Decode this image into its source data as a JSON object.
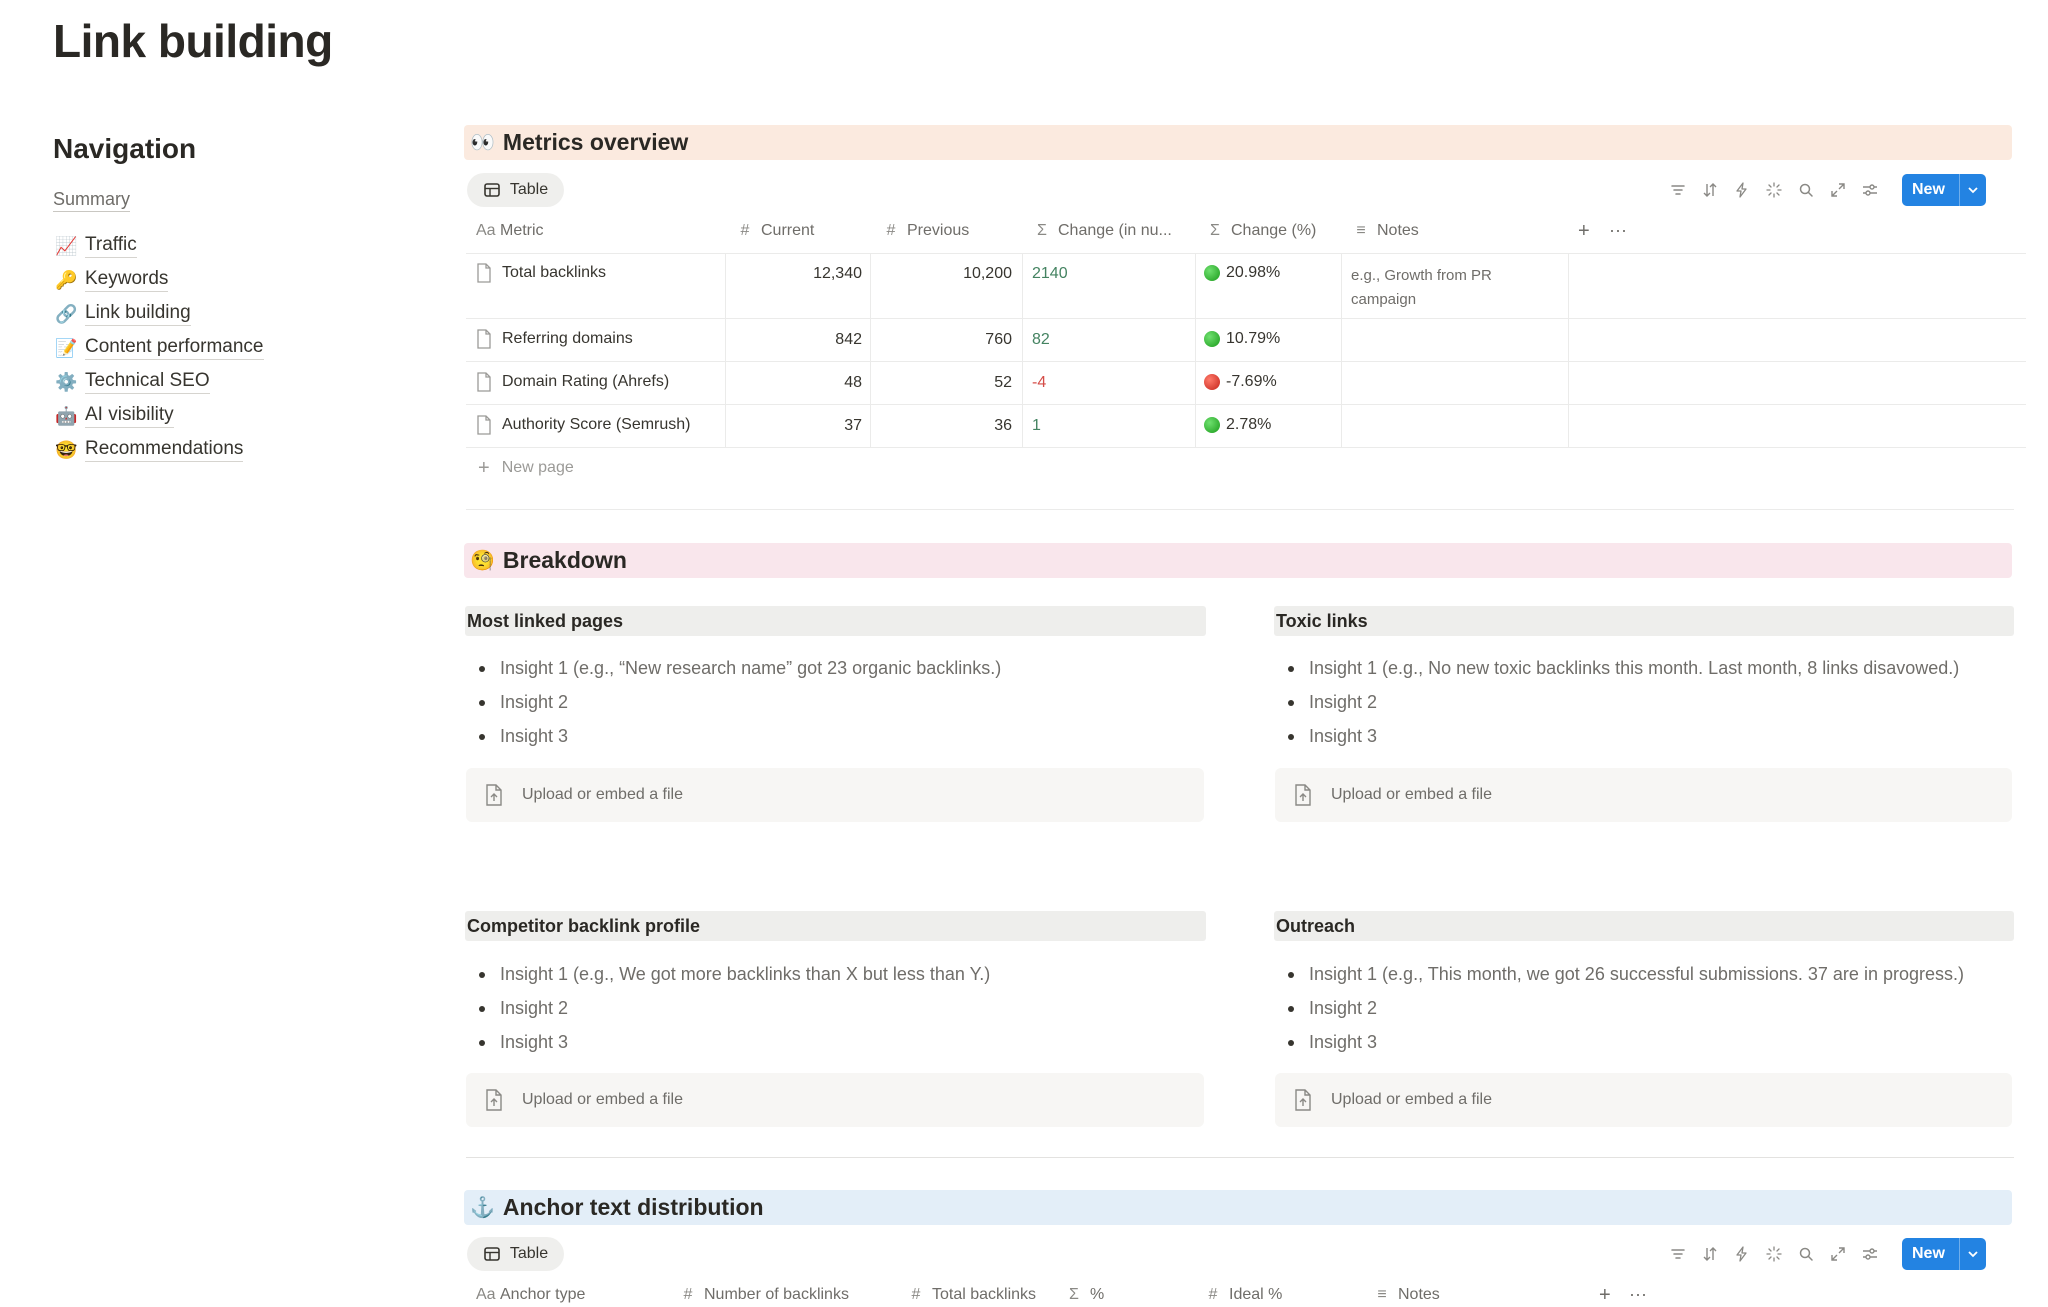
{
  "page": {
    "title": "Link building"
  },
  "navigation": {
    "heading": "Navigation",
    "summary": "Summary",
    "items": [
      {
        "emoji": "📈",
        "label": "Traffic"
      },
      {
        "emoji": "🔑",
        "label": "Keywords"
      },
      {
        "emoji": "🔗",
        "label": "Link building"
      },
      {
        "emoji": "📝",
        "label": "Content performance"
      },
      {
        "emoji": "⚙️",
        "label": "Technical SEO"
      },
      {
        "emoji": "🤖",
        "label": "AI visibility"
      },
      {
        "emoji": "🤓",
        "label": "Recommendations"
      }
    ]
  },
  "metrics": {
    "emoji": "👀",
    "heading": "Metrics overview",
    "view_tab": "Table",
    "new_button": "New",
    "columns": [
      {
        "icon": "Aa",
        "label": "Metric"
      },
      {
        "icon": "#",
        "label": "Current"
      },
      {
        "icon": "#",
        "label": "Previous"
      },
      {
        "icon": "Σ",
        "label": "Change (in nu..."
      },
      {
        "icon": "Σ",
        "label": "Change (%)"
      },
      {
        "icon": "≡",
        "label": "Notes"
      }
    ],
    "rows": [
      {
        "metric": "Total backlinks",
        "current": "12,340",
        "previous": "10,200",
        "change": "2140",
        "change_pct": "20.98%",
        "trend": "up",
        "notes": "e.g., Growth from PR campaign"
      },
      {
        "metric": "Referring domains",
        "current": "842",
        "previous": "760",
        "change": "82",
        "change_pct": "10.79%",
        "trend": "up",
        "notes": ""
      },
      {
        "metric": "Domain Rating (Ahrefs)",
        "current": "48",
        "previous": "52",
        "change": "-4",
        "change_pct": "-7.69%",
        "trend": "down",
        "notes": ""
      },
      {
        "metric": "Authority Score (Semrush)",
        "current": "37",
        "previous": "36",
        "change": "1",
        "change_pct": "2.78%",
        "trend": "up",
        "notes": ""
      }
    ],
    "new_page": "New page"
  },
  "breakdown": {
    "emoji": "🧐",
    "heading": "Breakdown",
    "upload_label": "Upload or embed a file",
    "cards": [
      {
        "title": "Most linked pages",
        "insights": [
          "Insight 1 (e.g., “New research name” got 23 organic backlinks.)",
          "Insight 2",
          "Insight 3"
        ]
      },
      {
        "title": "Toxic links",
        "insights": [
          "Insight 1 (e.g., No new toxic backlinks this month. Last month, 8 links disavowed.)",
          "Insight 2",
          "Insight 3"
        ]
      },
      {
        "title": "Competitor backlink profile",
        "insights": [
          "Insight 1 (e.g., We got more backlinks than X but less than Y.)",
          "Insight 2",
          "Insight 3"
        ]
      },
      {
        "title": "Outreach",
        "insights": [
          "Insight 1 (e.g., This month, we got 26 successful submissions. 37 are in progress.)",
          "Insight 2",
          "Insight 3"
        ]
      }
    ]
  },
  "anchor": {
    "emoji": "⚓",
    "heading": "Anchor text distribution",
    "view_tab": "Table",
    "new_button": "New",
    "columns": [
      {
        "icon": "Aa",
        "label": "Anchor type"
      },
      {
        "icon": "#",
        "label": "Number of backlinks"
      },
      {
        "icon": "#",
        "label": "Total backlinks"
      },
      {
        "icon": "Σ",
        "label": "%"
      },
      {
        "icon": "#",
        "label": "Ideal %"
      },
      {
        "icon": "≡",
        "label": "Notes"
      }
    ]
  },
  "colors": {
    "metrics_header_bg": "#fbeadf",
    "breakdown_header_bg": "#f9e6ec",
    "anchor_header_bg": "#e3eef8",
    "accent": "#2383e2",
    "positive": "#448361",
    "negative": "#d44c47"
  }
}
